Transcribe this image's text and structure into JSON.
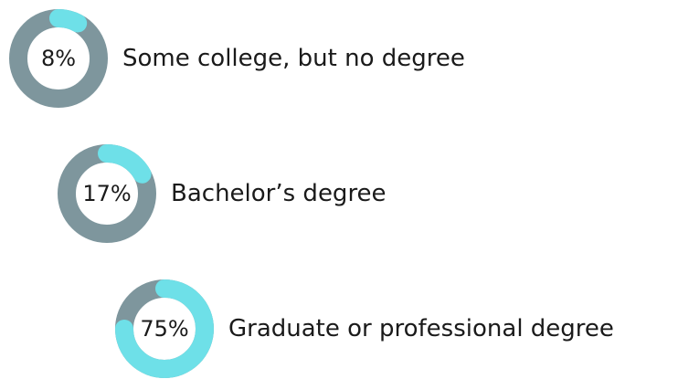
{
  "chart_data": {
    "type": "donut",
    "categories": [
      "Some college, but no degree",
      "Bachelor’s degree",
      "Graduate or professional degree"
    ],
    "values": [
      8,
      17,
      75
    ],
    "value_labels": [
      "8%",
      "17%",
      "75%"
    ],
    "color": "#6ee0e8",
    "track_color": "#7e969d"
  }
}
